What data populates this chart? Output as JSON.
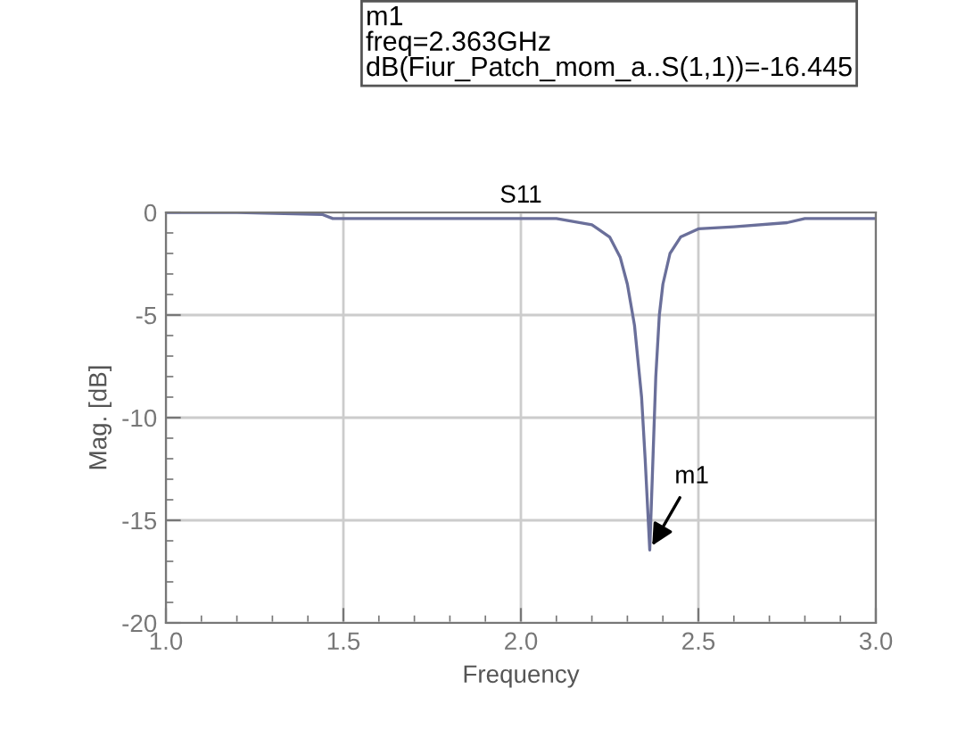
{
  "chart_data": {
    "type": "line",
    "title": "S11",
    "xlabel": "Frequency",
    "ylabel": "Mag. [dB]",
    "annotations": [
      "m1",
      "freq=2.363GHz",
      "dB(Fiur_Patch_mom_a..S(1,1))=-16.445",
      {
        "text": "m1",
        "x": 2.363,
        "y": -16.445
      }
    ],
    "series": [
      {
        "color": "#6a6f9a",
        "x": [
          1.0,
          1.2,
          1.44,
          1.47,
          1.7,
          2.0,
          2.1,
          2.2,
          2.25,
          2.28,
          2.3,
          2.32,
          2.34,
          2.35,
          2.363,
          2.37,
          2.38,
          2.39,
          2.4,
          2.42,
          2.45,
          2.5,
          2.6,
          2.75,
          2.8,
          3.0
        ],
        "values": [
          0.0,
          0.0,
          -0.1,
          -0.3,
          -0.3,
          -0.3,
          -0.3,
          -0.6,
          -1.2,
          -2.2,
          -3.5,
          -5.5,
          -9,
          -12,
          -16.445,
          -13,
          -8,
          -5,
          -3.5,
          -2,
          -1.2,
          -0.8,
          -0.7,
          -0.5,
          -0.3,
          -0.3
        ]
      }
    ],
    "xlim": [
      1.0,
      3.0
    ],
    "ylim": [
      -20,
      0
    ],
    "xticks": [
      {
        "value": 1,
        "label": "1.0"
      },
      1.5,
      {
        "value": 2,
        "label": "2.0"
      },
      2.5,
      {
        "value": 3,
        "label": "3.0"
      }
    ],
    "yticks": [
      -20,
      -15,
      -10,
      -5,
      0
    ],
    "grid": true,
    "marker": "none",
    "line_style": "solid"
  }
}
